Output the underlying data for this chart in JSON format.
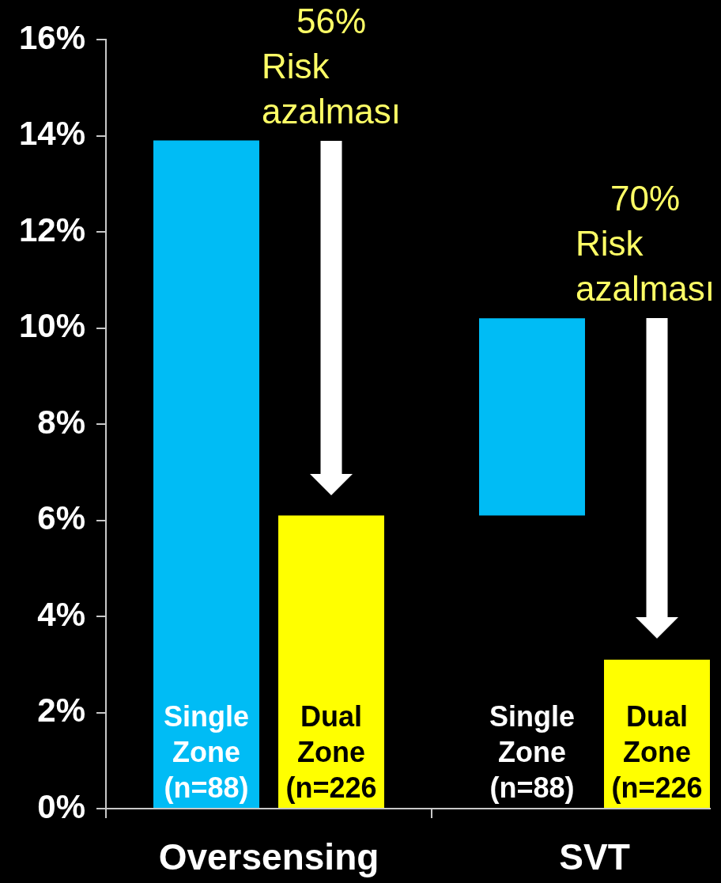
{
  "chart_data": {
    "type": "bar",
    "categories": [
      "Oversensing",
      "SVT"
    ],
    "series": [
      {
        "name": "Single Zone (n=88)",
        "color": "#00bcf5",
        "values": [
          13.9,
          4.1
        ],
        "base": [
          0,
          6.1
        ]
      },
      {
        "name": "Dual Zone (n=226",
        "color": "#ffff00",
        "values": [
          6.1,
          3.1
        ]
      }
    ],
    "ylim": [
      0,
      16
    ],
    "yticks": [
      {
        "value": 0,
        "label": "0%"
      },
      {
        "value": 2,
        "label": "2%"
      },
      {
        "value": 4,
        "label": "4%"
      },
      {
        "value": 6,
        "label": "6%"
      },
      {
        "value": 8,
        "label": "8%"
      },
      {
        "value": 10,
        "label": "10%"
      },
      {
        "value": 12,
        "label": "12%"
      },
      {
        "value": 14,
        "label": "14%"
      },
      {
        "value": 16,
        "label": "16%"
      }
    ],
    "annotations": [
      "56% Risk azalması",
      "70% Risk azalması"
    ]
  }
}
